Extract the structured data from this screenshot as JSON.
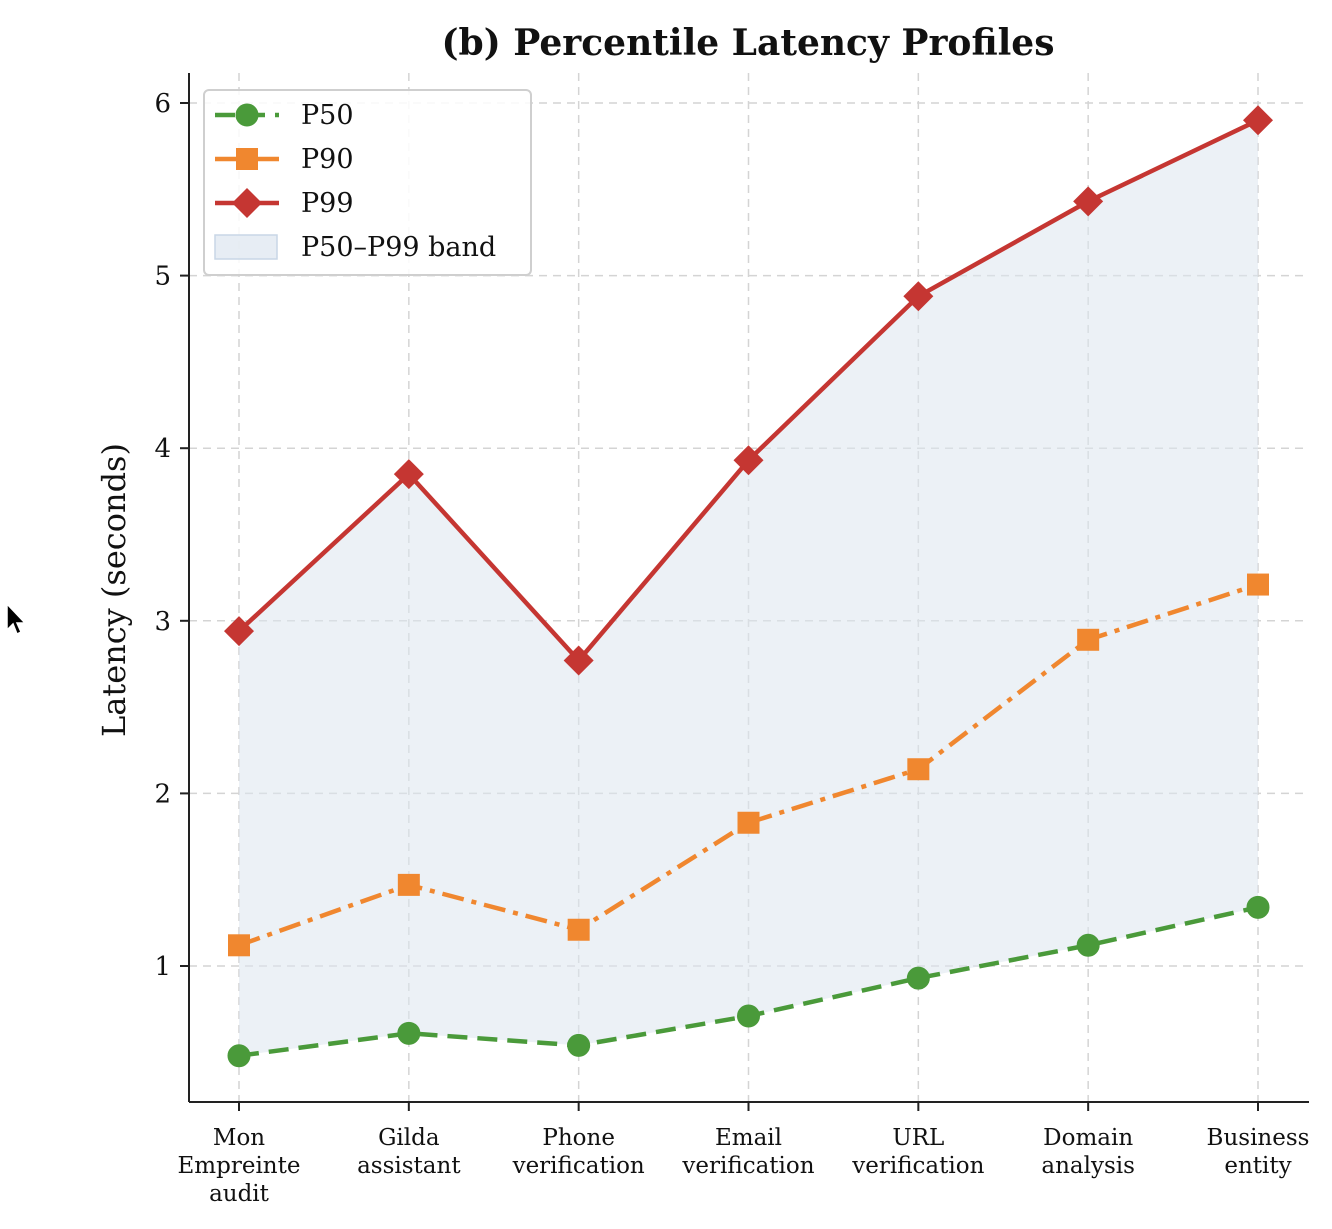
{
  "chart_data": {
    "type": "line",
    "title": "(b) Percentile Latency Profiles",
    "xlabel": "",
    "ylabel": "Latency (seconds)",
    "categories": [
      [
        "Mon",
        "Empreinte",
        "audit"
      ],
      [
        "Gilda",
        "assistant"
      ],
      [
        "Phone",
        "verification"
      ],
      [
        "Email",
        "verification"
      ],
      [
        "URL",
        "verification"
      ],
      [
        "Domain",
        "analysis"
      ],
      [
        "Business",
        "entity"
      ]
    ],
    "yticks": [
      "1",
      "2",
      "3",
      "4",
      "5",
      "6"
    ],
    "ytick_values": [
      1,
      2,
      3,
      4,
      5,
      6
    ],
    "ylim": [
      0.2,
      6.15
    ],
    "grid": true,
    "legend_position": "top-left",
    "series": [
      {
        "name": "P50",
        "values": [
          0.48,
          0.61,
          0.54,
          0.71,
          0.93,
          1.12,
          1.34
        ],
        "color": "#4a9a3a",
        "marker": "circle",
        "line_style": "dashed"
      },
      {
        "name": "P90",
        "values": [
          1.12,
          1.47,
          1.21,
          1.83,
          2.14,
          2.89,
          3.21
        ],
        "color": "#f0872f",
        "marker": "square",
        "line_style": "dashdot"
      },
      {
        "name": "P99",
        "values": [
          2.94,
          3.85,
          2.77,
          3.93,
          4.88,
          5.43,
          5.9
        ],
        "color": "#c53632",
        "marker": "diamond",
        "line_style": "solid"
      }
    ],
    "band": {
      "name": "P50–P99 band",
      "from": "P50",
      "to": "P99",
      "color": "#dde6ef"
    }
  }
}
